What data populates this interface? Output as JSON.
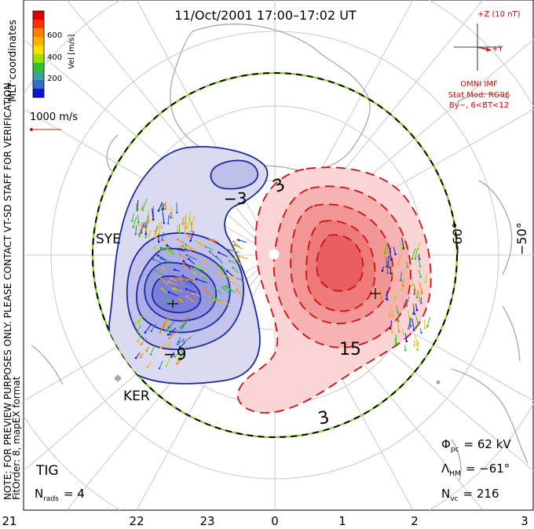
{
  "title": "11/Oct/2001 17:00–17:02 UT",
  "coordinates_label": "MLT coordinates",
  "note_lines": [
    "NOTE: FOR PREVIEW PURPOSES ONLY. PLEASE CONTACT VT-SD STAFF FOR VERIFICATION.",
    "FitOrder: 8, mapEX format"
  ],
  "colorbar": {
    "label": "Vel [m/s]",
    "ticks": [
      "600",
      "400",
      "200"
    ],
    "colors": [
      "#e00000",
      "#ff3000",
      "#ff8000",
      "#ffb000",
      "#ffe000",
      "#a0e000",
      "#30c030",
      "#40a0a0",
      "#3070c0",
      "#1010e0"
    ]
  },
  "vector_scale": "1000 m/s",
  "imf": {
    "plus_z": "+Z (10 nT)",
    "plus_y": "+Y",
    "source": "OMNI IMF",
    "model_line1": "Stat Mod: RG96",
    "model_line2": "By−, 6<BT<12"
  },
  "latitude_labels": [
    "−60°",
    "−50°"
  ],
  "contour_labels": {
    "neg_a": "−3",
    "neg_b": "−9",
    "pos_a": "3",
    "pos_b": "15",
    "pos_c": "3"
  },
  "stations": [
    "SYE",
    "KER",
    "TIG"
  ],
  "stats": {
    "phi_main": "Φ",
    "phi_sub": "pc",
    "phi_value": "= 62 kV",
    "lambda_main": "Λ",
    "lambda_sub": "HM",
    "lambda_value": "= −61°",
    "nvc_main": "N",
    "nvc_sub": "vc",
    "nvc_value": "= 216",
    "nrads_main": "N",
    "nrads_sub": "rads",
    "nrads_value": "= 4"
  },
  "mlt_axis": [
    "21",
    "22",
    "23",
    "0",
    "1",
    "2",
    "3"
  ]
}
